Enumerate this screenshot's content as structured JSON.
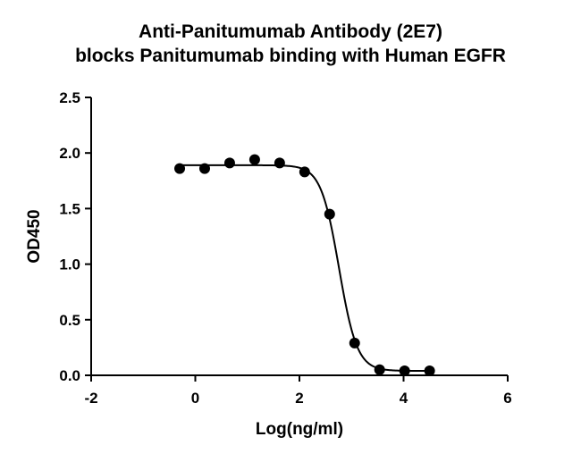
{
  "chart_data": {
    "type": "scatter",
    "title_lines": [
      "Anti-Panitumumab Antibody (2E7)",
      "blocks Panitumumab binding with Human EGFR"
    ],
    "xlabel": "Log(ng/ml)",
    "ylabel": "OD450",
    "xlim": [
      -2,
      6
    ],
    "ylim": [
      0,
      2.5
    ],
    "xticks": [
      -2,
      0,
      2,
      4,
      6
    ],
    "yticks": [
      0.0,
      0.5,
      1.0,
      1.5,
      2.0,
      2.5
    ],
    "ytick_labels": [
      "0.0",
      "0.5",
      "1.0",
      "1.5",
      "2.0",
      "2.5"
    ],
    "grid": false,
    "series": [
      {
        "points": [
          {
            "x": -0.3,
            "y": 1.86
          },
          {
            "x": 0.18,
            "y": 1.86
          },
          {
            "x": 0.66,
            "y": 1.91
          },
          {
            "x": 1.14,
            "y": 1.94
          },
          {
            "x": 1.62,
            "y": 1.91
          },
          {
            "x": 2.1,
            "y": 1.83
          },
          {
            "x": 2.58,
            "y": 1.45
          },
          {
            "x": 3.06,
            "y": 0.29
          },
          {
            "x": 3.54,
            "y": 0.05
          },
          {
            "x": 4.02,
            "y": 0.04
          },
          {
            "x": 4.5,
            "y": 0.04
          }
        ],
        "fit": {
          "model": "4PL",
          "top": 1.89,
          "bottom": 0.04,
          "log_ic50": 2.76,
          "hill": 2.5,
          "x_range": [
            -0.3,
            4.5
          ]
        }
      }
    ]
  }
}
